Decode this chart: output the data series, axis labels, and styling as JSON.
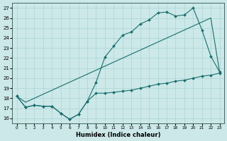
{
  "xlabel": "Humidex (Indice chaleur)",
  "bg_color": "#cce8e8",
  "line_color": "#1a6e6e",
  "grid_color": "#aad4d4",
  "line1_x": [
    0,
    1,
    2,
    3,
    4,
    5,
    6,
    7,
    8,
    9,
    10,
    11,
    12,
    13,
    14,
    15,
    16,
    17,
    18,
    19,
    20,
    21,
    22,
    23
  ],
  "line1_y": [
    18.2,
    17.1,
    17.3,
    17.2,
    17.2,
    16.5,
    15.9,
    16.4,
    17.7,
    18.5,
    18.5,
    18.6,
    18.7,
    18.8,
    19.0,
    19.2,
    19.4,
    19.5,
    19.7,
    19.8,
    20.0,
    20.2,
    20.3,
    20.5
  ],
  "line2_x": [
    0,
    1,
    2,
    3,
    4,
    5,
    6,
    7,
    8,
    9,
    10,
    11,
    12,
    13,
    14,
    15,
    16,
    17,
    18,
    19,
    20,
    21,
    22,
    23
  ],
  "line2_y": [
    18.2,
    17.1,
    17.3,
    17.2,
    17.2,
    16.5,
    15.9,
    16.4,
    17.7,
    19.6,
    22.1,
    23.2,
    24.3,
    24.6,
    25.4,
    25.8,
    26.5,
    26.6,
    26.2,
    26.3,
    27.0,
    24.8,
    22.2,
    20.6
  ],
  "line3_x": [
    0,
    1,
    2,
    3,
    4,
    5,
    6,
    7,
    8,
    9,
    10,
    11,
    12,
    13,
    14,
    15,
    16,
    17,
    18,
    19,
    20,
    21,
    22,
    23
  ],
  "line3_y": [
    18.2,
    17.6,
    18.0,
    18.4,
    18.8,
    19.2,
    19.6,
    20.0,
    20.4,
    20.8,
    21.2,
    21.6,
    22.0,
    22.4,
    22.8,
    23.2,
    23.6,
    24.0,
    24.4,
    24.8,
    25.2,
    25.6,
    26.0,
    20.6
  ],
  "ylim": [
    15.5,
    27.5
  ],
  "yticks": [
    16,
    17,
    18,
    19,
    20,
    21,
    22,
    23,
    24,
    25,
    26,
    27
  ],
  "xlim": [
    -0.5,
    23.5
  ],
  "xticks": [
    0,
    1,
    2,
    3,
    4,
    5,
    6,
    7,
    8,
    9,
    10,
    11,
    12,
    13,
    14,
    15,
    16,
    17,
    18,
    19,
    20,
    21,
    22,
    23
  ]
}
